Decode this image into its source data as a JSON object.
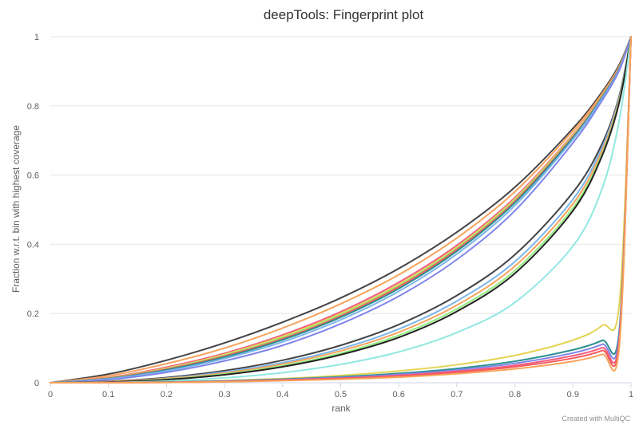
{
  "chart_data": {
    "type": "line",
    "title": "deepTools: Fingerprint plot",
    "xlabel": "rank",
    "ylabel": "Fraction w.r.t. bin with highest coverage",
    "xlim": [
      0,
      1
    ],
    "ylim": [
      0,
      1
    ],
    "x_ticks": [
      "0",
      "0.1",
      "0.2",
      "0.3",
      "0.4",
      "0.5",
      "0.6",
      "0.7",
      "0.8",
      "0.9",
      "1"
    ],
    "y_ticks": [
      "0",
      "0.2",
      "0.4",
      "0.6",
      "0.8",
      "1"
    ],
    "grid": true,
    "legend": "none",
    "x": [
      0,
      0.1,
      0.2,
      0.3,
      0.4,
      0.5,
      0.6,
      0.7,
      0.8,
      0.9,
      0.95,
      0.98,
      1
    ],
    "series": [
      {
        "color": "#434348",
        "values": [
          0,
          0.025,
          0.065,
          0.115,
          0.175,
          0.245,
          0.33,
          0.435,
          0.565,
          0.735,
          0.84,
          0.92,
          1
        ]
      },
      {
        "color": "#f7a35c",
        "values": [
          0,
          0.02,
          0.055,
          0.1,
          0.158,
          0.228,
          0.312,
          0.418,
          0.552,
          0.728,
          0.835,
          0.915,
          1
        ]
      },
      {
        "color": "#f15c80",
        "values": [
          0,
          0.015,
          0.045,
          0.085,
          0.138,
          0.205,
          0.29,
          0.397,
          0.535,
          0.718,
          0.83,
          0.912,
          1
        ]
      },
      {
        "color": "#e4d354",
        "values": [
          0,
          0.014,
          0.042,
          0.082,
          0.134,
          0.2,
          0.284,
          0.392,
          0.531,
          0.716,
          0.829,
          0.911,
          1
        ]
      },
      {
        "color": "#90ed7d",
        "values": [
          0,
          0.013,
          0.04,
          0.079,
          0.13,
          0.196,
          0.28,
          0.388,
          0.527,
          0.713,
          0.827,
          0.91,
          1
        ]
      },
      {
        "color": "#f45b5b",
        "values": [
          0,
          0.013,
          0.039,
          0.077,
          0.127,
          0.193,
          0.277,
          0.385,
          0.524,
          0.711,
          0.826,
          0.909,
          1
        ]
      },
      {
        "color": "#2b908f",
        "values": [
          0,
          0.012,
          0.037,
          0.074,
          0.124,
          0.189,
          0.272,
          0.38,
          0.52,
          0.708,
          0.824,
          0.908,
          1
        ]
      },
      {
        "color": "#7cb5ec",
        "values": [
          0,
          0.011,
          0.034,
          0.07,
          0.118,
          0.182,
          0.264,
          0.372,
          0.512,
          0.703,
          0.821,
          0.906,
          1
        ]
      },
      {
        "color": "#8085e9",
        "values": [
          0,
          0.009,
          0.03,
          0.063,
          0.108,
          0.17,
          0.25,
          0.356,
          0.497,
          0.693,
          0.815,
          0.903,
          1
        ]
      },
      {
        "color": "#434348",
        "values": [
          0,
          0.004,
          0.015,
          0.035,
          0.065,
          0.108,
          0.168,
          0.252,
          0.37,
          0.55,
          0.69,
          0.83,
          1
        ]
      },
      {
        "color": "#7cb5ec",
        "values": [
          0,
          0.003,
          0.013,
          0.031,
          0.058,
          0.098,
          0.155,
          0.236,
          0.35,
          0.53,
          0.68,
          0.825,
          1
        ]
      },
      {
        "color": "#f7a35c",
        "values": [
          0,
          0.003,
          0.012,
          0.028,
          0.054,
          0.092,
          0.146,
          0.224,
          0.337,
          0.517,
          0.67,
          0.82,
          1
        ]
      },
      {
        "color": "#90ed7d",
        "values": [
          0,
          0.002,
          0.01,
          0.025,
          0.049,
          0.085,
          0.137,
          0.213,
          0.324,
          0.505,
          0.66,
          0.815,
          1
        ]
      },
      {
        "color": "#222222",
        "values": [
          0,
          0.002,
          0.009,
          0.023,
          0.046,
          0.081,
          0.131,
          0.206,
          0.316,
          0.497,
          0.655,
          0.812,
          1
        ]
      },
      {
        "color": "#91e8e1",
        "values": [
          0,
          0.001,
          0.005,
          0.014,
          0.029,
          0.053,
          0.089,
          0.145,
          0.232,
          0.395,
          0.56,
          0.76,
          1
        ]
      },
      {
        "color": "#e4d354",
        "values": [
          0,
          0.0005,
          0.002,
          0.006,
          0.012,
          0.021,
          0.034,
          0.052,
          0.079,
          0.123,
          0.165,
          0.23,
          1
        ]
      },
      {
        "color": "#2b908f",
        "values": [
          0,
          0.0004,
          0.002,
          0.005,
          0.01,
          0.017,
          0.027,
          0.041,
          0.062,
          0.095,
          0.122,
          0.155,
          1
        ]
      },
      {
        "color": "#8085e9",
        "values": [
          0,
          0.0003,
          0.0015,
          0.004,
          0.009,
          0.015,
          0.024,
          0.037,
          0.056,
          0.086,
          0.111,
          0.142,
          1
        ]
      },
      {
        "color": "#f15c80",
        "values": [
          0,
          0.0003,
          0.0012,
          0.0035,
          0.008,
          0.013,
          0.021,
          0.033,
          0.05,
          0.078,
          0.101,
          0.13,
          1
        ]
      },
      {
        "color": "#f45b5b",
        "values": [
          0,
          0.0002,
          0.001,
          0.003,
          0.007,
          0.012,
          0.019,
          0.03,
          0.046,
          0.071,
          0.093,
          0.121,
          1
        ]
      },
      {
        "color": "#f7a35c",
        "values": [
          0,
          0.0002,
          0.0008,
          0.0025,
          0.006,
          0.01,
          0.016,
          0.026,
          0.04,
          0.062,
          0.082,
          0.108,
          1
        ]
      }
    ]
  },
  "credit": "Created with MultiQC"
}
